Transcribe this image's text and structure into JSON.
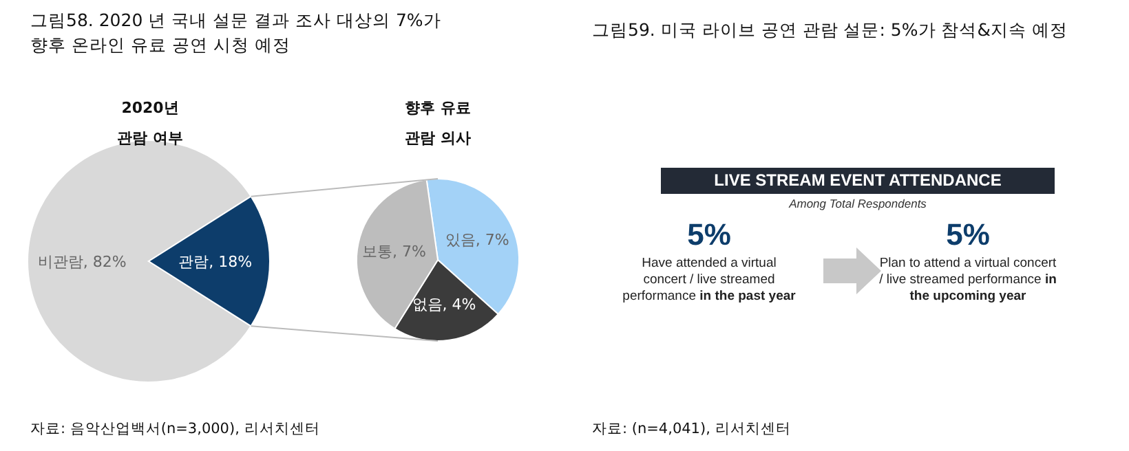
{
  "chart_data": [
    {
      "type": "pie",
      "title": "그림58. 2020 년 국내 설문 결과 조사 대상의 7%가 향후 온라인 유료 공연 시청 예정",
      "subtitle": "2020년 관람 여부",
      "categories": [
        "비관람",
        "관람"
      ],
      "values": [
        82,
        18
      ],
      "colors": [
        "#d9d9d9",
        "#0d3d6b"
      ],
      "value_labels": [
        ", 82%",
        ", 18%"
      ]
    },
    {
      "type": "pie",
      "subtitle": "향후 유료 관람 의사",
      "categories": [
        "있음",
        "없음",
        "보통"
      ],
      "values": [
        7,
        4,
        7
      ],
      "colors": [
        "#a3d2f7",
        "#3b3b3b",
        "#bdbdbd"
      ],
      "value_labels": [
        ", 7%",
        ", 4%",
        ", 7%"
      ],
      "annotations": [
        "자료: 음악산업백서(n=3,000), 리서치센터"
      ]
    },
    {
      "type": "other",
      "title": "그림59. 미국 라이브 공연 관람 설문: 5%가 참석&지속 예정",
      "annotations": [
        "LIVE STREAM EVENT ATTENDANCE",
        "Among Total Respondents",
        "5%",
        "Have attended a virtual concert / live streamed performance",
        "in the past year",
        "5%",
        "Plan to attend a virtual concert / live streamed performance",
        "in the upcoming year",
        "자료: (n=4,041), 리서치센터"
      ]
    }
  ]
}
